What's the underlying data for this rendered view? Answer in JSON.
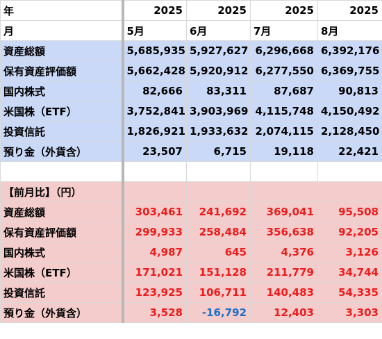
{
  "header": {
    "row1_label": "年",
    "years": [
      "2025",
      "2025",
      "2025",
      "2025"
    ],
    "row2_label": "月",
    "months": [
      "5月",
      "6月",
      "7月",
      "8月"
    ]
  },
  "assets": [
    {
      "label": "資産総額",
      "values": [
        "5,685,935",
        "5,927,627",
        "6,296,668",
        "6,392,176"
      ]
    },
    {
      "label": "保有資産評価額",
      "values": [
        "5,662,428",
        "5,920,912",
        "6,277,550",
        "6,369,755"
      ]
    },
    {
      "label": "国内株式",
      "values": [
        "82,666",
        "83,311",
        "87,687",
        "90,813"
      ]
    },
    {
      "label": "米国株（ETF）",
      "values": [
        "3,752,841",
        "3,903,969",
        "4,115,748",
        "4,150,492"
      ]
    },
    {
      "label": "投資信託",
      "values": [
        "1,826,921",
        "1,933,632",
        "2,074,115",
        "2,128,450"
      ]
    },
    {
      "label": "預り金（外貨含）",
      "values": [
        "23,507",
        "6,715",
        "19,118",
        "22,421"
      ]
    }
  ],
  "mom_title": "【前月比】（円）",
  "mom": [
    {
      "label": "資産総額",
      "values": [
        "303,461",
        "241,692",
        "369,041",
        "95,508"
      ]
    },
    {
      "label": "保有資産評価額",
      "values": [
        "299,933",
        "258,484",
        "356,638",
        "92,205"
      ]
    },
    {
      "label": "国内株式",
      "values": [
        "4,987",
        "645",
        "4,376",
        "3,126"
      ]
    },
    {
      "label": "米国株（ETF）",
      "values": [
        "171,021",
        "151,128",
        "211,779",
        "34,744"
      ]
    },
    {
      "label": "投資信託",
      "values": [
        "123,925",
        "106,711",
        "140,483",
        "54,335"
      ]
    },
    {
      "label": "預り金（外貨含）",
      "values": [
        "3,528",
        "-16,792",
        "12,403",
        "3,303"
      ]
    }
  ],
  "colors": {
    "asset_row_bg": "#c9d9f7",
    "mom_row_bg": "#f5cccc",
    "positive_text": "#ee1b1b",
    "negative_text": "#1c6fc7"
  }
}
